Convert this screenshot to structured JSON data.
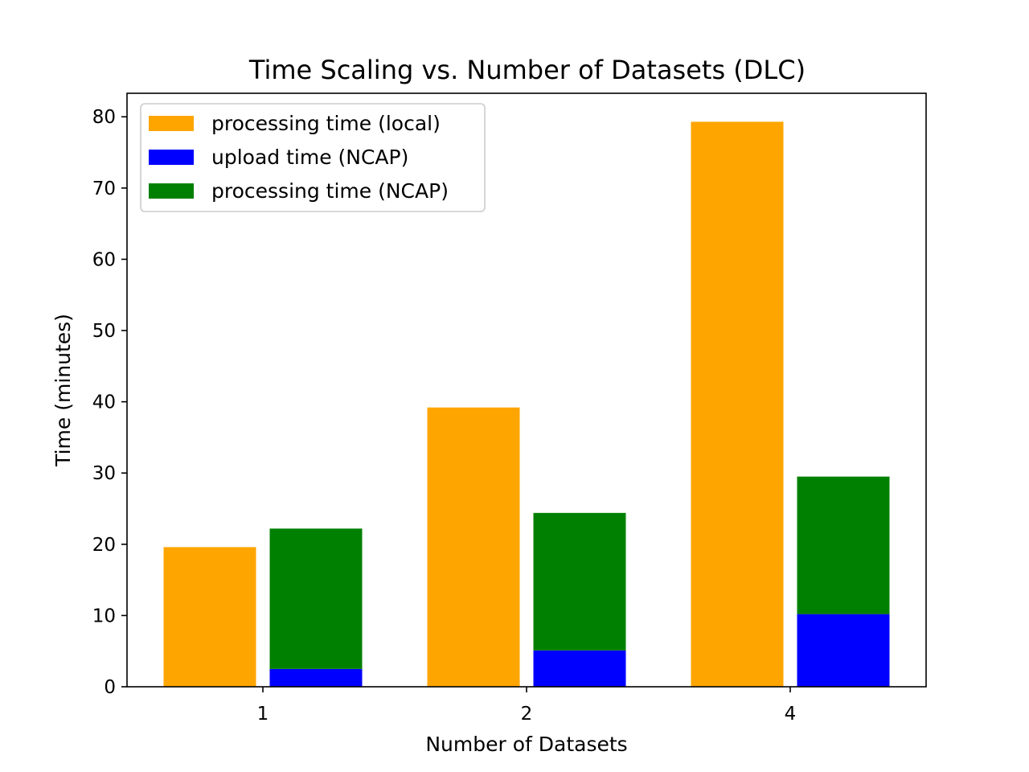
{
  "chart_data": {
    "type": "bar",
    "title": "Time Scaling vs. Number of Datasets (DLC)",
    "xlabel": "Number of Datasets",
    "ylabel": "Time (minutes)",
    "categories": [
      "1",
      "2",
      "4"
    ],
    "ylim": [
      0,
      83.3
    ],
    "yticks": [
      0,
      10,
      20,
      30,
      40,
      50,
      60,
      70,
      80
    ],
    "grid": false,
    "legend_position": "top-left",
    "series": [
      {
        "name": "processing time (local)",
        "color": "#ffa500",
        "group": "local",
        "stack": "base",
        "values": [
          19.6,
          39.2,
          79.3
        ]
      },
      {
        "name": "upload time (NCAP)",
        "color": "#0000ff",
        "group": "ncap",
        "stack": "base",
        "values": [
          2.5,
          5.1,
          10.2
        ]
      },
      {
        "name": "processing time (NCAP)",
        "color": "#008000",
        "group": "ncap",
        "stack": "top",
        "values": [
          19.7,
          19.3,
          19.3
        ]
      }
    ]
  }
}
